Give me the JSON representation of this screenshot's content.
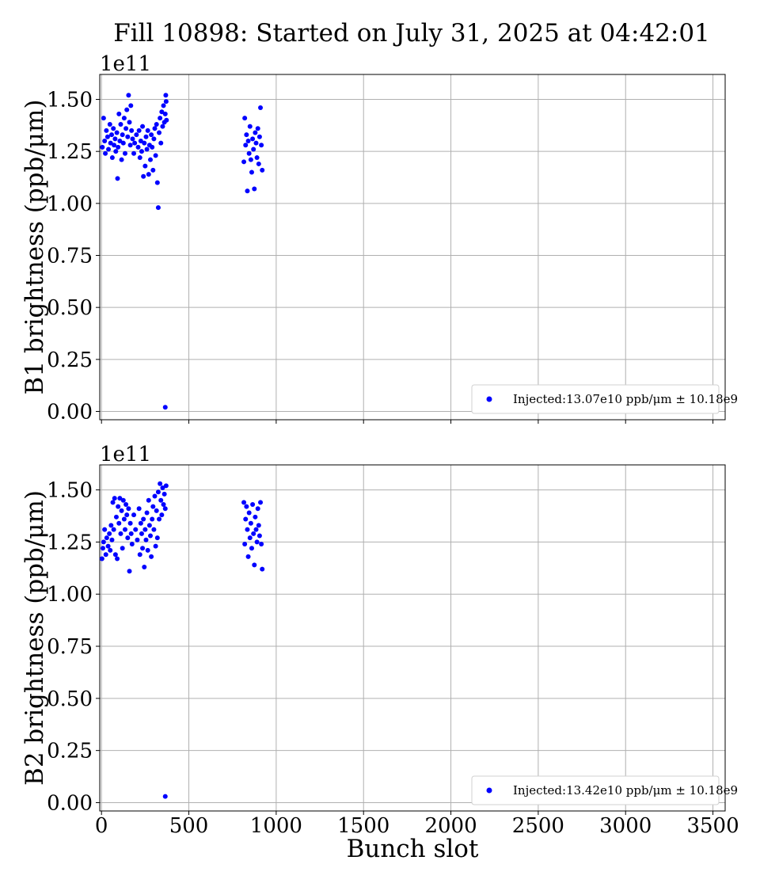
{
  "figure": {
    "title": "Fill 10898: Started on July 31, 2025 at 04:42:01"
  },
  "chart_data": [
    {
      "type": "scatter",
      "title": "",
      "xlabel": "",
      "ylabel": "B1 brightness (ppb/μm)",
      "offset_text": "1e11",
      "y_multiplier": 100000000000.0,
      "xlim": [
        -10,
        3570
      ],
      "ylim": [
        -0.04,
        1.62
      ],
      "xticks": [
        0,
        500,
        1000,
        1500,
        2000,
        2500,
        3000,
        3500
      ],
      "yticks": [
        0.0,
        0.25,
        0.5,
        0.75,
        1.0,
        1.25,
        1.5
      ],
      "ytick_labels": [
        "0.00",
        "0.25",
        "0.50",
        "0.75",
        "1.00",
        "1.25",
        "1.50"
      ],
      "show_xtick_labels": false,
      "grid": true,
      "legend_position": "lower right",
      "color": "#0000ff",
      "series": [
        {
          "name": "Injected:13.07e10 ppb/μm ± 10.18e9",
          "x": [
            5,
            12,
            18,
            22,
            28,
            35,
            40,
            48,
            52,
            58,
            62,
            68,
            72,
            78,
            82,
            88,
            92,
            95,
            100,
            105,
            110,
            115,
            120,
            125,
            130,
            135,
            140,
            145,
            150,
            155,
            160,
            165,
            168,
            172,
            178,
            185,
            190,
            200,
            210,
            215,
            220,
            225,
            230,
            235,
            240,
            245,
            250,
            255,
            260,
            265,
            270,
            275,
            280,
            285,
            290,
            295,
            300,
            305,
            310,
            315,
            320,
            325,
            330,
            335,
            340,
            345,
            350,
            355,
            360,
            365,
            368,
            370,
            372,
            815,
            820,
            825,
            830,
            835,
            840,
            845,
            850,
            855,
            860,
            865,
            870,
            875,
            880,
            885,
            890,
            895,
            900,
            905,
            910,
            915,
            920,
            365
          ],
          "y": [
            1.27,
            1.41,
            1.3,
            1.24,
            1.35,
            1.32,
            1.26,
            1.38,
            1.29,
            1.33,
            1.22,
            1.36,
            1.28,
            1.31,
            1.25,
            1.34,
            1.12,
            1.27,
            1.43,
            1.3,
            1.38,
            1.21,
            1.33,
            1.29,
            1.41,
            1.24,
            1.36,
            1.45,
            1.32,
            1.52,
            1.39,
            1.28,
            1.47,
            1.35,
            1.31,
            1.24,
            1.29,
            1.33,
            1.27,
            1.35,
            1.22,
            1.3,
            1.25,
            1.37,
            1.13,
            1.29,
            1.18,
            1.32,
            1.26,
            1.35,
            1.14,
            1.28,
            1.21,
            1.33,
            1.27,
            1.16,
            1.31,
            1.36,
            1.23,
            1.38,
            1.1,
            0.98,
            1.34,
            1.41,
            1.29,
            1.44,
            1.37,
            1.47,
            1.39,
            1.43,
            1.52,
            1.49,
            1.4,
            1.2,
            1.41,
            1.28,
            1.33,
            1.06,
            1.3,
            1.24,
            1.37,
            1.21,
            1.15,
            1.31,
            1.26,
            1.07,
            1.34,
            1.29,
            1.22,
            1.36,
            1.19,
            1.32,
            1.46,
            1.28,
            1.16,
            0.02
          ]
        }
      ]
    },
    {
      "type": "scatter",
      "title": "",
      "xlabel": "Bunch slot",
      "ylabel": "B2 brightness (ppb/μm)",
      "offset_text": "1e11",
      "y_multiplier": 100000000000.0,
      "xlim": [
        -10,
        3570
      ],
      "ylim": [
        -0.04,
        1.62
      ],
      "xticks": [
        0,
        500,
        1000,
        1500,
        2000,
        2500,
        3000,
        3500
      ],
      "yticks": [
        0.0,
        0.25,
        0.5,
        0.75,
        1.0,
        1.25,
        1.5
      ],
      "ytick_labels": [
        "0.00",
        "0.25",
        "0.50",
        "0.75",
        "1.00",
        "1.25",
        "1.50"
      ],
      "show_xtick_labels": true,
      "grid": true,
      "legend_position": "lower right",
      "color": "#0000ff",
      "series": [
        {
          "name": "Injected:13.42e10 ppb/μm ± 10.18e9",
          "x": [
            3,
            8,
            12,
            18,
            25,
            30,
            38,
            45,
            50,
            55,
            60,
            65,
            70,
            75,
            80,
            85,
            90,
            95,
            100,
            105,
            110,
            115,
            120,
            125,
            130,
            135,
            140,
            145,
            150,
            155,
            160,
            165,
            170,
            175,
            185,
            195,
            205,
            215,
            220,
            225,
            230,
            235,
            240,
            245,
            250,
            255,
            260,
            265,
            270,
            275,
            280,
            285,
            290,
            295,
            300,
            305,
            310,
            315,
            320,
            325,
            330,
            335,
            340,
            345,
            350,
            355,
            360,
            365,
            370,
            815,
            820,
            825,
            830,
            835,
            840,
            845,
            850,
            855,
            860,
            865,
            870,
            875,
            880,
            885,
            890,
            895,
            900,
            905,
            910,
            915,
            920,
            365
          ],
          "y": [
            1.17,
            1.22,
            1.25,
            1.31,
            1.19,
            1.27,
            1.23,
            1.29,
            1.21,
            1.33,
            1.26,
            1.44,
            1.31,
            1.46,
            1.19,
            1.37,
            1.17,
            1.42,
            1.34,
            1.46,
            1.29,
            1.4,
            1.22,
            1.45,
            1.36,
            1.31,
            1.43,
            1.38,
            1.27,
            1.41,
            1.11,
            1.34,
            1.29,
            1.24,
            1.38,
            1.31,
            1.26,
            1.41,
            1.19,
            1.34,
            1.29,
            1.22,
            1.36,
            1.13,
            1.31,
            1.26,
            1.39,
            1.21,
            1.45,
            1.33,
            1.28,
            1.18,
            1.36,
            1.42,
            1.31,
            1.47,
            1.23,
            1.4,
            1.27,
            1.49,
            1.36,
            1.53,
            1.45,
            1.38,
            1.51,
            1.43,
            1.48,
            1.41,
            1.52,
            1.44,
            1.24,
            1.36,
            1.42,
            1.31,
            1.18,
            1.39,
            1.27,
            1.34,
            1.22,
            1.43,
            1.29,
            1.14,
            1.37,
            1.31,
            1.25,
            1.41,
            1.33,
            1.28,
            1.44,
            1.24,
            1.12,
            0.03
          ]
        }
      ]
    }
  ]
}
